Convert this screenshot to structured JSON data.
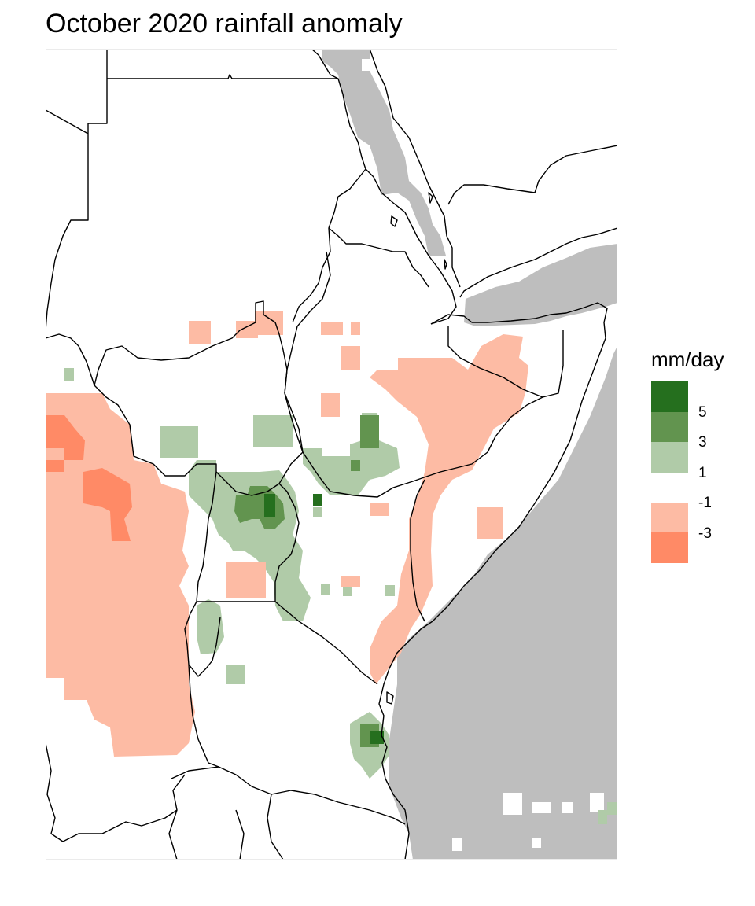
{
  "title": "October 2020 rainfall anomaly",
  "legend": {
    "title": "mm/day",
    "breaks": [
      "5",
      "3",
      "1",
      "-1",
      "-3"
    ],
    "bins": [
      {
        "range": "> 5",
        "color": "#256F1E"
      },
      {
        "range": "3 to 5",
        "color": "#62944F"
      },
      {
        "range": "1 to 3",
        "color": "#B0CBA8"
      },
      {
        "range": "-1 to -3",
        "color": "#FDBBA4"
      },
      {
        "range": "< -3",
        "color": "#FF8A66"
      }
    ]
  },
  "colors": {
    "ocean": "#BEBEBE",
    "borders": "#000000",
    "background": "#FFFFFF"
  }
}
